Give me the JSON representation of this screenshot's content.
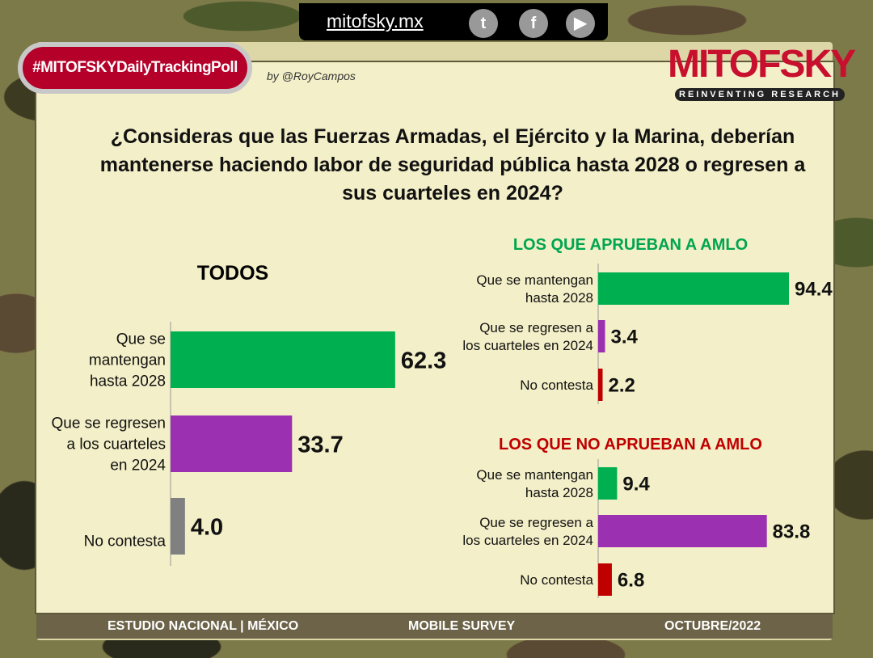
{
  "header": {
    "url": "mitofsky.mx",
    "hashtag": "#MITOFSKYDailyTrackingPoll",
    "byline": "by @RoyCampos",
    "logo": "MITOFSKY",
    "logo_tagline": "REINVENTING RESEARCH",
    "social": [
      "twitter-icon",
      "facebook-icon",
      "youtube-icon"
    ]
  },
  "title": "¿Consideras que las Fuerzas Armadas, el Ejército y la Marina, deberían mantenerse haciendo labor de seguridad pública hasta 2028 o regresen a sus cuarteles en 2024?",
  "footer": {
    "left": "ESTUDIO NACIONAL | MÉXICO",
    "center": "MOBILE SURVEY",
    "right": "OCTUBRE/2022"
  },
  "chart_data": [
    {
      "type": "bar",
      "orientation": "horizontal",
      "title": "TODOS",
      "title_color": "#000000",
      "categories": [
        [
          "Que se",
          "mantengan",
          "hasta 2028"
        ],
        [
          "Que se regresen",
          "a los cuarteles",
          "en 2024"
        ],
        [
          "No contesta"
        ]
      ],
      "values": [
        62.3,
        33.7,
        4.0
      ],
      "labels": [
        "62.3",
        "33.7",
        "4.0"
      ],
      "colors": [
        "#00b050",
        "#9b30b0",
        "#808080"
      ]
    },
    {
      "type": "bar",
      "orientation": "horizontal",
      "title": "LOS QUE APRUEBAN A AMLO",
      "title_color": "#00a550",
      "categories": [
        [
          "Que se mantengan",
          "hasta 2028"
        ],
        [
          "Que se regresen a",
          "los cuarteles en 2024"
        ],
        [
          "No contesta"
        ]
      ],
      "values": [
        94.4,
        3.4,
        2.2
      ],
      "labels": [
        "94.4",
        "3.4",
        "2.2"
      ],
      "colors": [
        "#00b050",
        "#9b30b0",
        "#c00000"
      ]
    },
    {
      "type": "bar",
      "orientation": "horizontal",
      "title": "LOS QUE NO APRUEBAN A AMLO",
      "title_color": "#c00000",
      "categories": [
        [
          "Que se mantengan",
          "hasta 2028"
        ],
        [
          "Que se regresen a",
          "los cuarteles en 2024"
        ],
        [
          "No contesta"
        ]
      ],
      "values": [
        9.4,
        83.8,
        6.8
      ],
      "labels": [
        "9.4",
        "83.8",
        "6.8"
      ],
      "colors": [
        "#00b050",
        "#9b30b0",
        "#c00000"
      ]
    }
  ]
}
